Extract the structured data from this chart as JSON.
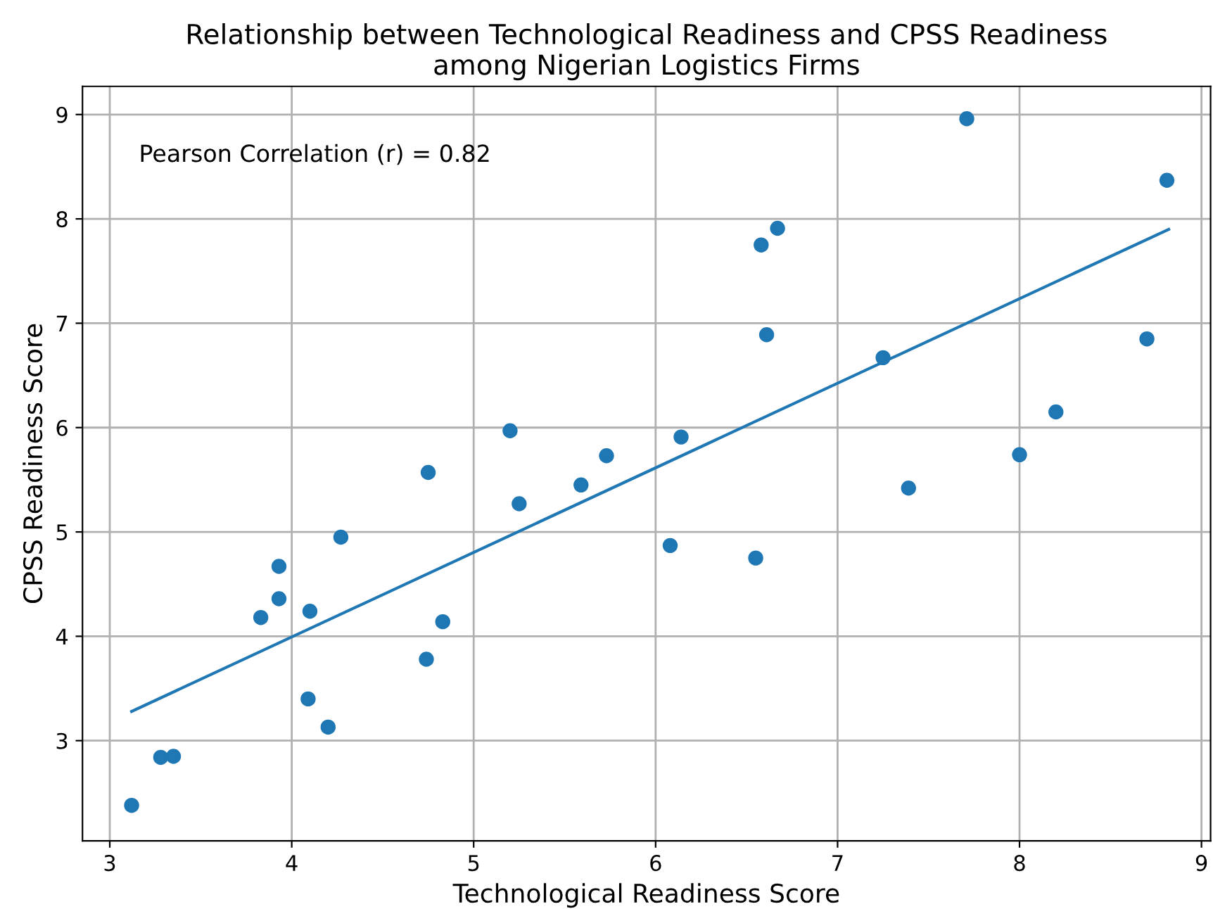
{
  "chart_data": {
    "type": "scatter",
    "title": "Relationship between Technological Readiness and CPSS Readiness\namong Nigerian Logistics Firms",
    "xlabel": "Technological Readiness Score",
    "ylabel": "CPSS Readiness Score",
    "annotations": [
      "Pearson Correlation (r) = 0.82"
    ],
    "xlim": [
      2.85,
      9.05
    ],
    "ylim": [
      2.04,
      9.27
    ],
    "xticks": [
      3,
      4,
      5,
      6,
      7,
      8,
      9
    ],
    "yticks": [
      3,
      4,
      5,
      6,
      7,
      8,
      9
    ],
    "grid": true,
    "series": [
      {
        "color": "#1f77b4",
        "marker": "circle",
        "x": [
          3.12,
          3.28,
          3.35,
          3.83,
          3.93,
          3.93,
          4.1,
          4.09,
          4.2,
          4.27,
          4.75,
          4.74,
          4.83,
          5.2,
          5.25,
          5.59,
          5.73,
          6.08,
          6.14,
          6.55,
          6.58,
          6.67,
          6.61,
          7.25,
          7.39,
          7.71,
          8.0,
          8.2,
          8.7,
          8.81
        ],
        "values": [
          2.38,
          2.84,
          2.85,
          4.18,
          4.36,
          4.67,
          4.24,
          3.4,
          3.13,
          4.95,
          5.57,
          3.78,
          4.14,
          5.97,
          5.27,
          5.45,
          5.73,
          4.87,
          5.91,
          4.75,
          7.75,
          7.91,
          6.89,
          6.67,
          5.42,
          8.96,
          5.74,
          6.15,
          6.85,
          8.37
        ]
      },
      {
        "type": "line",
        "marker": "none",
        "color": "#1f77b4",
        "x": [
          3.12,
          8.82
        ],
        "values": [
          3.28,
          7.9
        ]
      }
    ]
  }
}
